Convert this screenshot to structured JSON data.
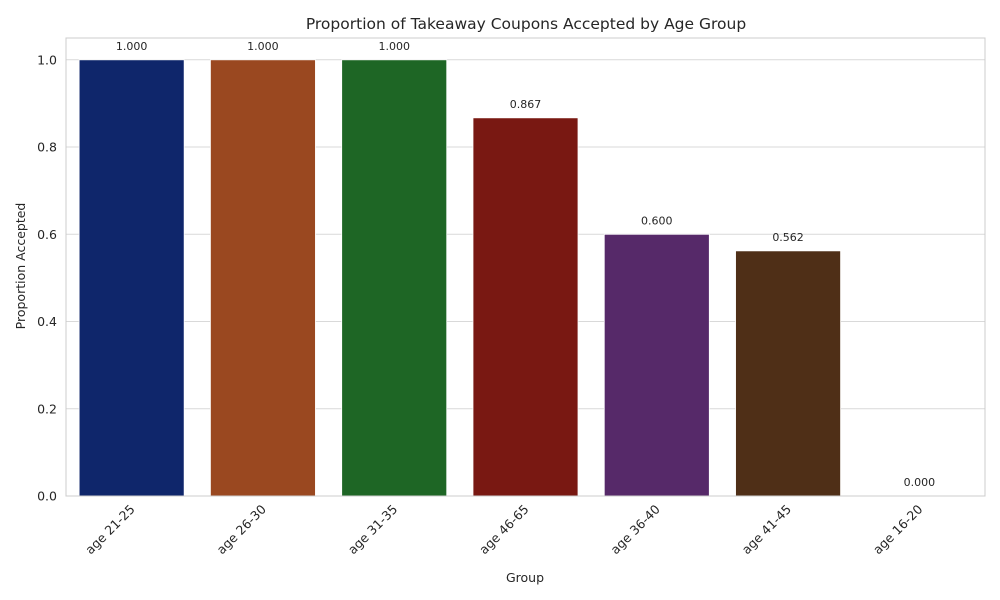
{
  "chart_data": {
    "type": "bar",
    "title": "Proportion of Takeaway Coupons Accepted by Age Group",
    "xlabel": "Group",
    "ylabel": "Proportion Accepted",
    "categories": [
      "age 21-25",
      "age 26-30",
      "age 31-35",
      "age 46-65",
      "age 36-40",
      "age 41-45",
      "age 16-20"
    ],
    "values": [
      1.0,
      1.0,
      1.0,
      0.867,
      0.6,
      0.562,
      0.0
    ],
    "value_labels": [
      "1.000",
      "1.000",
      "1.000",
      "0.867",
      "0.600",
      "0.562",
      "0.000"
    ],
    "colors": [
      "#0f266b",
      "#9a4820",
      "#1e6625",
      "#791812",
      "#562969",
      "#4f2f17",
      "#373737"
    ],
    "yticks": [
      0.0,
      0.2,
      0.4,
      0.6,
      0.8,
      1.0
    ],
    "ytick_labels": [
      "0.0",
      "0.2",
      "0.4",
      "0.6",
      "0.8",
      "1.0"
    ],
    "ylim": [
      0,
      1.05
    ],
    "grid": "horizontal",
    "legend": "none"
  }
}
